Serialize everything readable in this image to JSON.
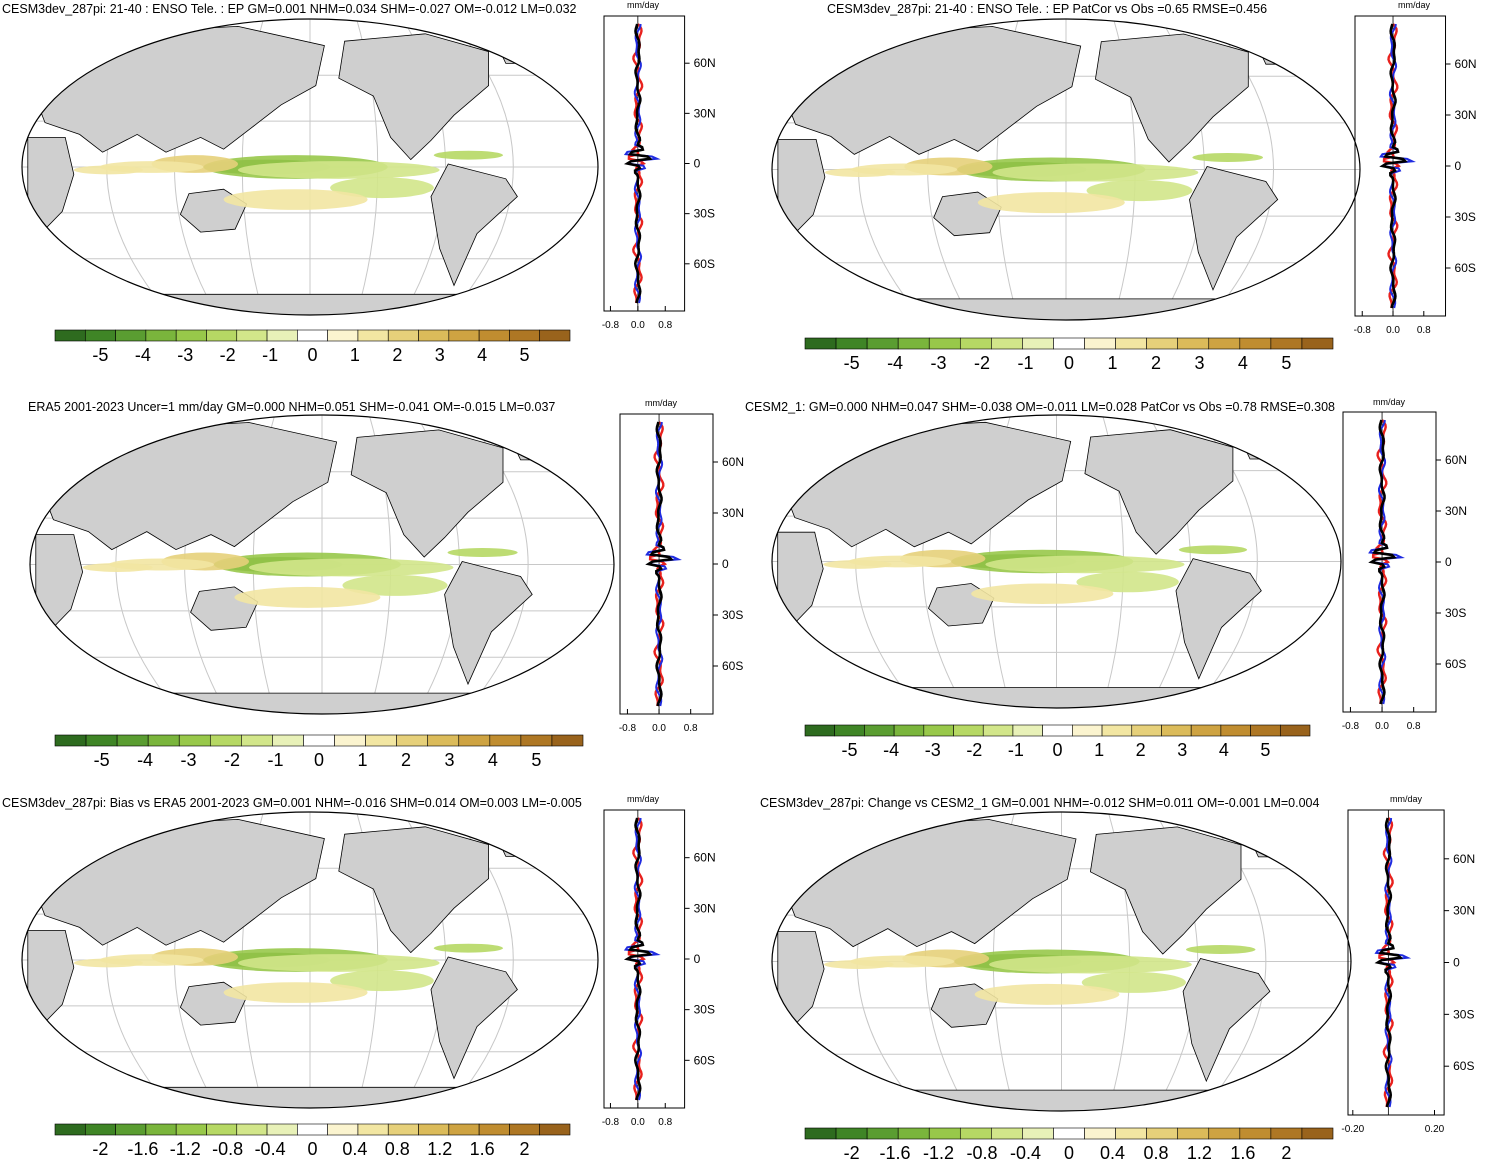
{
  "colors": {
    "land": "#cfcfcf",
    "grid": "#c8c8c8",
    "zonal_model": "#e8211d",
    "zonal_obs": "#1f2be0",
    "zonal_mean": "#000000",
    "palette": [
      "#2e6b1f",
      "#3f8526",
      "#5a9d31",
      "#7ab53c",
      "#98c84a",
      "#b6d864",
      "#d2e68a",
      "#e8f1b8",
      "#ffffff",
      "#fbf4cf",
      "#f2e6a2",
      "#e6d07a",
      "#dbbb5a",
      "#cea342",
      "#c08d30",
      "#ae7724",
      "#99631c"
    ]
  },
  "zonal_units": "mm/day",
  "panels": [
    {
      "id": "p1",
      "title": "CESM3dev_287pi: 21-40 : ENSO Tele. : EP GM=0.001 NHM=0.034 SHM=-0.027 OM=-0.012 LM=0.032",
      "colorbar_labels": [
        "-5",
        "-4",
        "-3",
        "-2",
        "-1",
        "0",
        "1",
        "2",
        "3",
        "4",
        "5"
      ],
      "lat_ticks": [
        "60N",
        "30N",
        "0",
        "30S",
        "60S"
      ],
      "x_ticks": [
        "-0.8",
        "0.0",
        "0.8"
      ]
    },
    {
      "id": "p2",
      "title": "CESM3dev_287pi: 21-40 : ENSO Tele. : EP PatCor vs Obs =0.65 RMSE=0.456",
      "colorbar_labels": [
        "-5",
        "-4",
        "-3",
        "-2",
        "-1",
        "0",
        "1",
        "2",
        "3",
        "4",
        "5"
      ],
      "lat_ticks": [
        "60N",
        "30N",
        "0",
        "30S",
        "60S"
      ],
      "x_ticks": [
        "-0.8",
        "0.0",
        "0.8"
      ]
    },
    {
      "id": "p3",
      "title": "ERA5 2001-2023 Uncer=1 mm/day GM=0.000 NHM=0.051 SHM=-0.041 OM=-0.015 LM=0.037",
      "colorbar_labels": [
        "-5",
        "-4",
        "-3",
        "-2",
        "-1",
        "0",
        "1",
        "2",
        "3",
        "4",
        "5"
      ],
      "lat_ticks": [
        "60N",
        "30N",
        "0",
        "30S",
        "60S"
      ],
      "x_ticks": [
        "-0.8",
        "0.0",
        "0.8"
      ]
    },
    {
      "id": "p4",
      "title": "CESM2_1: GM=0.000 NHM=0.047 SHM=-0.038 OM=-0.011 LM=0.028 PatCor vs Obs =0.78 RMSE=0.308",
      "colorbar_labels": [
        "-5",
        "-4",
        "-3",
        "-2",
        "-1",
        "0",
        "1",
        "2",
        "3",
        "4",
        "5"
      ],
      "lat_ticks": [
        "60N",
        "30N",
        "0",
        "30S",
        "60S"
      ],
      "x_ticks": [
        "-0.8",
        "0.0",
        "0.8"
      ]
    },
    {
      "id": "p5",
      "title": "CESM3dev_287pi: Bias vs ERA5 2001-2023 GM=0.001 NHM=-0.016 SHM=0.014 OM=0.003 LM=-0.005",
      "colorbar_labels": [
        "-2",
        "-1.6",
        "-1.2",
        "-0.8",
        "-0.4",
        "0",
        "0.4",
        "0.8",
        "1.2",
        "1.6",
        "2"
      ],
      "lat_ticks": [
        "60N",
        "30N",
        "0",
        "30S",
        "60S"
      ],
      "x_ticks": [
        "-0.8",
        "0.0",
        "0.8"
      ]
    },
    {
      "id": "p6",
      "title": "CESM3dev_287pi: Change vs CESM2_1 GM=0.001 NHM=-0.012 SHM=0.011 OM=-0.001 LM=0.004",
      "colorbar_labels": [
        "-2",
        "-1.6",
        "-1.2",
        "-0.8",
        "-0.4",
        "0",
        "0.4",
        "0.8",
        "1.2",
        "1.6",
        "2"
      ],
      "lat_ticks": [
        "60N",
        "30N",
        "0",
        "30S",
        "60S"
      ],
      "x_ticks": [
        "-0.20",
        "0.20"
      ]
    }
  ]
}
